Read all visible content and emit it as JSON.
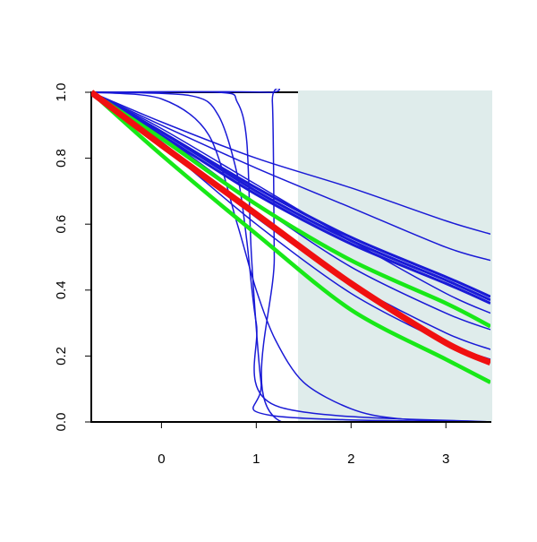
{
  "chart_data": {
    "type": "line",
    "xlim": [
      -0.74,
      3.47
    ],
    "ylim": [
      0,
      1
    ],
    "xticks": [
      0,
      1,
      2,
      3
    ],
    "yticks": [
      {
        "value": 0,
        "label": "0.0"
      },
      {
        "value": 0.2,
        "label": "0.2"
      },
      {
        "value": 0.4,
        "label": "0.4"
      },
      {
        "value": 0.6,
        "label": "0.6"
      },
      {
        "value": 0.8,
        "label": "0.8"
      },
      {
        "value": 1,
        "label": "1.0"
      }
    ],
    "shaded_region": {
      "xlim": [
        1.44,
        3.47
      ],
      "color": "#dfeceb"
    },
    "series": [
      {
        "color": "#1a1ad6",
        "x": [
          -0.74,
          0,
          1,
          2,
          3,
          3.47
        ],
        "values": [
          1,
          0.91,
          0.8,
          0.71,
          0.61,
          0.57
        ]
      },
      {
        "color": "#1a1ad6",
        "x": [
          -0.74,
          0,
          1,
          2,
          3,
          3.47
        ],
        "values": [
          1,
          0.9,
          0.77,
          0.65,
          0.53,
          0.49
        ]
      },
      {
        "color": "#1a1ad6",
        "x": [
          -0.74,
          0,
          1,
          2,
          3,
          3.47
        ],
        "values": [
          1,
          0.88,
          0.71,
          0.56,
          0.44,
          0.38
        ]
      },
      {
        "color": "#1a1ad6",
        "x": [
          -0.74,
          0,
          1,
          2,
          3,
          3.47
        ],
        "values": [
          1,
          0.88,
          0.7,
          0.55,
          0.43,
          0.37
        ]
      },
      {
        "color": "#1a1ad6",
        "x": [
          -0.74,
          0,
          1,
          2,
          3,
          3.47
        ],
        "values": [
          1,
          0.87,
          0.69,
          0.54,
          0.42,
          0.36
        ]
      },
      {
        "color": "#1a1ad6",
        "x": [
          -0.74,
          0,
          1,
          2,
          3,
          3.47
        ],
        "values": [
          1,
          0.89,
          0.72,
          0.55,
          0.39,
          0.33
        ]
      },
      {
        "color": "#1a1ad6",
        "x": [
          -0.74,
          0,
          1,
          2,
          3,
          3.47
        ],
        "values": [
          1,
          0.87,
          0.66,
          0.47,
          0.33,
          0.28
        ]
      },
      {
        "color": "#1a1ad6",
        "x": [
          -0.74,
          0,
          1,
          2,
          3,
          3.47
        ],
        "values": [
          1,
          0.85,
          0.62,
          0.42,
          0.27,
          0.22
        ]
      },
      {
        "color": "#1a1ad6",
        "x": [
          -0.74,
          0,
          1,
          2,
          3,
          3.47
        ],
        "values": [
          1,
          0.84,
          0.6,
          0.39,
          0.24,
          0.19
        ]
      },
      {
        "color": "#1a1ad6",
        "x": [
          -0.74,
          1.1,
          1.17,
          1.19,
          1.21,
          3.47
        ],
        "values": [
          1,
          1,
          0.97,
          0.5,
          0.01,
          0
        ]
      },
      {
        "color": "#1a1ad6",
        "x": [
          -0.74,
          0.6,
          0.8,
          0.9,
          0.95,
          1.05,
          1.15,
          3.47
        ],
        "values": [
          1,
          1,
          0.97,
          0.85,
          0.5,
          0.12,
          0.02,
          0
        ]
      },
      {
        "color": "#1a1ad6",
        "x": [
          -0.74,
          0,
          0.5,
          0.8,
          1,
          1.2,
          1.5,
          2,
          2.5,
          3.47
        ],
        "values": [
          1,
          0.98,
          0.87,
          0.6,
          0.4,
          0.25,
          0.12,
          0.04,
          0.01,
          0
        ]
      },
      {
        "color": "#1a1ad6",
        "x": [
          -0.74,
          0.3,
          0.6,
          0.8,
          0.9,
          1,
          1.2,
          3.47
        ],
        "values": [
          1,
          0.99,
          0.93,
          0.75,
          0.55,
          0.3,
          0.05,
          0
        ]
      },
      {
        "color": "#18e818",
        "x": [
          -0.74,
          0,
          1,
          2,
          3,
          3.47
        ],
        "values": [
          1,
          0.86,
          0.66,
          0.49,
          0.36,
          0.29
        ]
      },
      {
        "color": "#18e818",
        "x": [
          -0.74,
          0,
          1,
          2,
          3,
          3.47
        ],
        "values": [
          1,
          0.81,
          0.57,
          0.34,
          0.19,
          0.12
        ]
      },
      {
        "color": "#f01010",
        "x": [
          -0.74,
          0,
          1,
          2,
          3,
          3.47
        ],
        "values": [
          1,
          0.84,
          0.63,
          0.42,
          0.24,
          0.18
        ]
      }
    ]
  }
}
